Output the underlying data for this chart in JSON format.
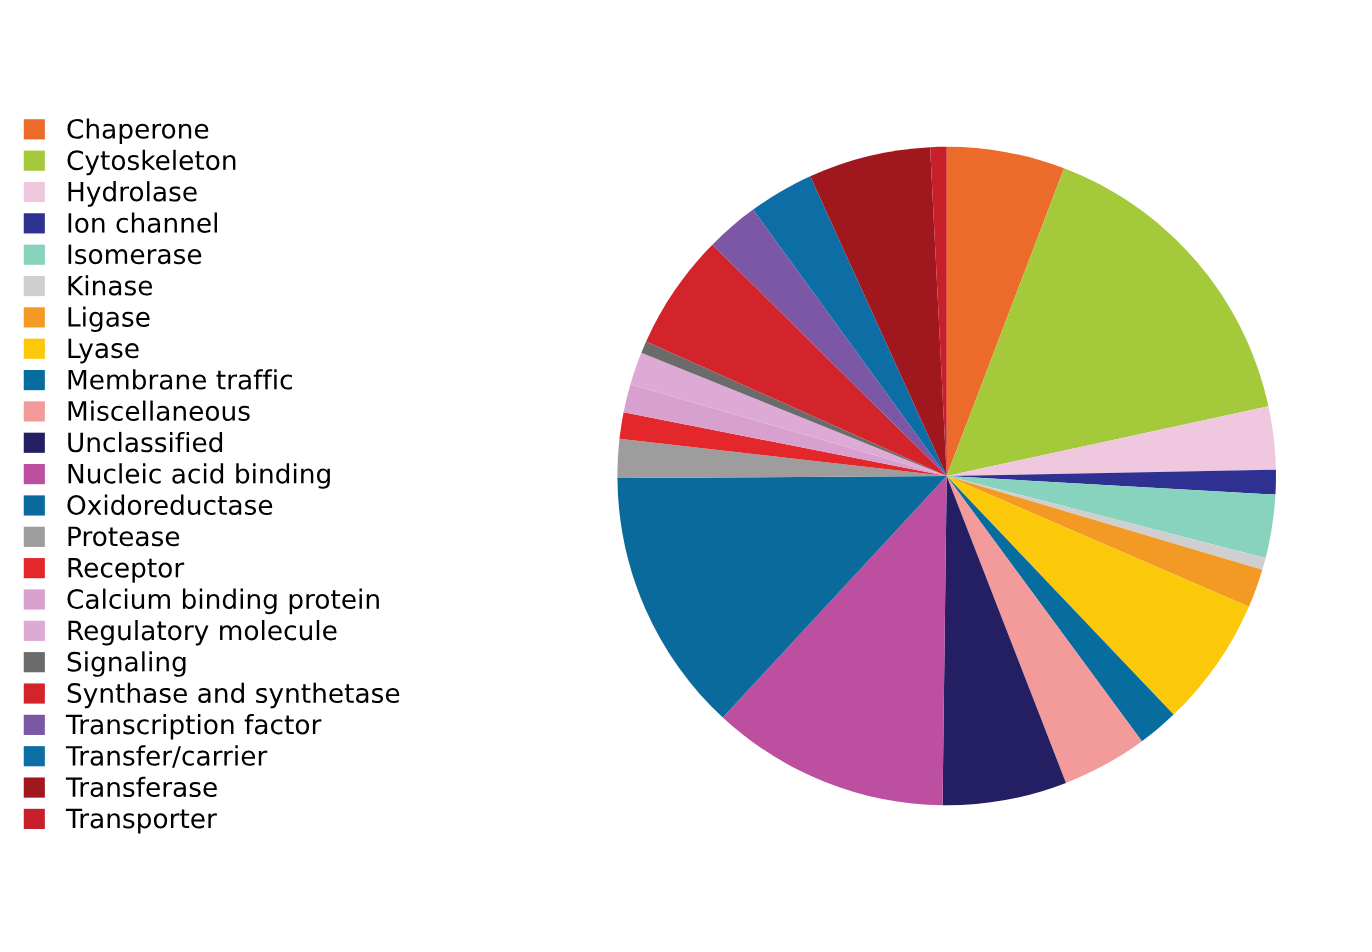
{
  "chart_data": {
    "type": "pie",
    "legend": "left",
    "categories": [
      "Chaperone",
      "Cytoskeleton",
      "Hydrolase",
      "Ion channel",
      "Isomerase",
      "Kinase",
      "Ligase",
      "Lyase",
      "Membrane traffic",
      "Miscellaneous",
      "Unclassified",
      "Nucleic acid binding",
      "Oxidoreductase",
      "Protease",
      "Receptor",
      "Calcium binding protein",
      "Regulatory molecule",
      "Signaling",
      "Synthase and synthetase",
      "Transcription factor",
      "Transfer/carrier",
      "Transferase",
      "Transporter"
    ],
    "values": [
      5.8,
      15.8,
      3.1,
      1.2,
      3.1,
      0.6,
      1.9,
      6.4,
      2.0,
      4.2,
      6.1,
      11.7,
      13.0,
      1.9,
      1.3,
      1.4,
      1.6,
      0.6,
      5.7,
      2.6,
      3.2,
      6.0,
      0.8
    ],
    "colors": [
      "#ec6a2a",
      "#a4c93a",
      "#efc8e0",
      "#2e3192",
      "#88d3bd",
      "#cfcfcf",
      "#f39a25",
      "#fcc80a",
      "#066d9e",
      "#f39a9a",
      "#241f63",
      "#bc4f9f",
      "#0a6a9c",
      "#9d9d9d",
      "#e3272b",
      "#d7a0cf",
      "#dcaad4",
      "#6b6b6b",
      "#d4242b",
      "#7b57a6",
      "#0d6ea5",
      "#a0171e",
      "#c8202a"
    ]
  }
}
